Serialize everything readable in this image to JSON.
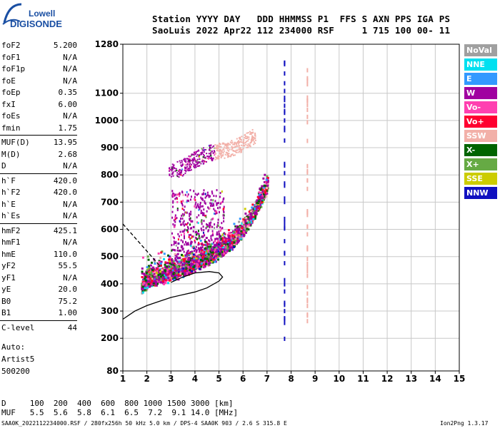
{
  "logo": {
    "brand": "Lowell",
    "product": "DIGISONDE"
  },
  "header": {
    "line1": "Station YYYY DAY   DDD HHMMSS P1  FFS S AXN PPS IGA PS",
    "line2": "SaoLuis 2022 Apr22 112 234000 RSF     1 715 100 00- 11"
  },
  "params": [
    {
      "name": "foF2",
      "value": "5.200"
    },
    {
      "name": "foF1",
      "value": "N/A"
    },
    {
      "name": "foF1p",
      "value": "N/A"
    },
    {
      "name": "foE",
      "value": "N/A"
    },
    {
      "name": "foEp",
      "value": "0.35"
    },
    {
      "name": "fxI",
      "value": "6.00"
    },
    {
      "name": "foEs",
      "value": "N/A"
    },
    {
      "name": "fmin",
      "value": "1.75"
    },
    {
      "name": "MUF(D)",
      "value": "13.95"
    },
    {
      "name": "M(D)",
      "value": "2.68"
    },
    {
      "name": "D",
      "value": "N/A"
    },
    {
      "name": "h`F",
      "value": "420.0"
    },
    {
      "name": "h`F2",
      "value": "420.0"
    },
    {
      "name": "h`E",
      "value": "N/A"
    },
    {
      "name": "h`Es",
      "value": "N/A"
    },
    {
      "name": "hmF2",
      "value": "425.1"
    },
    {
      "name": "hmF1",
      "value": "N/A"
    },
    {
      "name": "hmE",
      "value": "110.0"
    },
    {
      "name": "yF2",
      "value": "55.5"
    },
    {
      "name": "yF1",
      "value": "N/A"
    },
    {
      "name": "yE",
      "value": "20.0"
    },
    {
      "name": "B0",
      "value": "75.2"
    },
    {
      "name": "B1",
      "value": "1.00"
    },
    {
      "name": "C-level",
      "value": "44"
    }
  ],
  "autoscale": {
    "line1": "Auto:",
    "line2": "Artist5",
    "line3": "500200"
  },
  "legend": [
    {
      "label": "NoVal",
      "color": "#a0a0a0"
    },
    {
      "label": "NNE",
      "color": "#00e0f0"
    },
    {
      "label": "E",
      "color": "#3399ff"
    },
    {
      "label": "W",
      "color": "#a000a0"
    },
    {
      "label": "Vo-",
      "color": "#ff40b0"
    },
    {
      "label": "Vo+",
      "color": "#ff0030"
    },
    {
      "label": "SSW",
      "color": "#f2b0a8"
    },
    {
      "label": "X-",
      "color": "#006400"
    },
    {
      "label": "X+",
      "color": "#66aa44"
    },
    {
      "label": "SSE",
      "color": "#cccc00"
    },
    {
      "label": "NNW",
      "color": "#1010c0"
    }
  ],
  "muf_table": {
    "row1": "D     100  200  400  600  800 1000 1500 3000 [km]",
    "row2": "MUF   5.5  5.6  5.8  6.1  6.5  7.2  9.1 14.0 [MHz]"
  },
  "footer": {
    "left": "SAA0K_2022112234000.RSF / 280fx256h 50 kHz 5.0 km / DPS-4 SAA0K 903 / 2.6 S 315.8 E",
    "right": "Ion2Png 1.3.17"
  },
  "chart_data": {
    "type": "scatter",
    "xlabel": "",
    "ylabel": "",
    "xlim": [
      1,
      15
    ],
    "ylim": [
      80,
      1280
    ],
    "x_ticks": [
      1,
      2,
      3,
      4,
      5,
      6,
      7,
      8,
      9,
      10,
      11,
      12,
      13,
      14,
      15
    ],
    "y_ticks": [
      80,
      200,
      300,
      400,
      500,
      600,
      700,
      800,
      900,
      1000,
      1100,
      1280
    ],
    "grid": true,
    "traces": [
      {
        "name": "O-trace F2",
        "x": [
          1.75,
          2.0,
          2.5,
          3.0,
          3.5,
          4.0,
          4.5,
          5.0,
          5.5,
          6.0,
          6.5,
          7.0
        ],
        "y": [
          400,
          420,
          430,
          445,
          460,
          480,
          500,
          530,
          560,
          610,
          680,
          770
        ]
      },
      {
        "name": "Second hop",
        "x": [
          2.9,
          3.5,
          4.0,
          4.5,
          5.0,
          5.5,
          6.0,
          6.5
        ],
        "y": [
          820,
          840,
          870,
          890,
          900,
          910,
          930,
          960
        ]
      }
    ],
    "profile_solid": {
      "x": [
        1.0,
        1.5,
        2.0,
        2.5,
        3.0,
        3.5,
        4.0,
        4.5,
        5.0,
        5.15,
        5.0,
        4.6,
        4.0,
        3.5,
        3.0
      ],
      "y": [
        270,
        300,
        320,
        335,
        350,
        360,
        370,
        385,
        410,
        425,
        440,
        445,
        440,
        425,
        405
      ]
    },
    "profile_dashed": {
      "x": [
        1.0,
        1.3,
        1.6,
        1.9,
        2.2,
        2.5
      ],
      "y": [
        620,
        590,
        560,
        530,
        500,
        470
      ]
    }
  }
}
